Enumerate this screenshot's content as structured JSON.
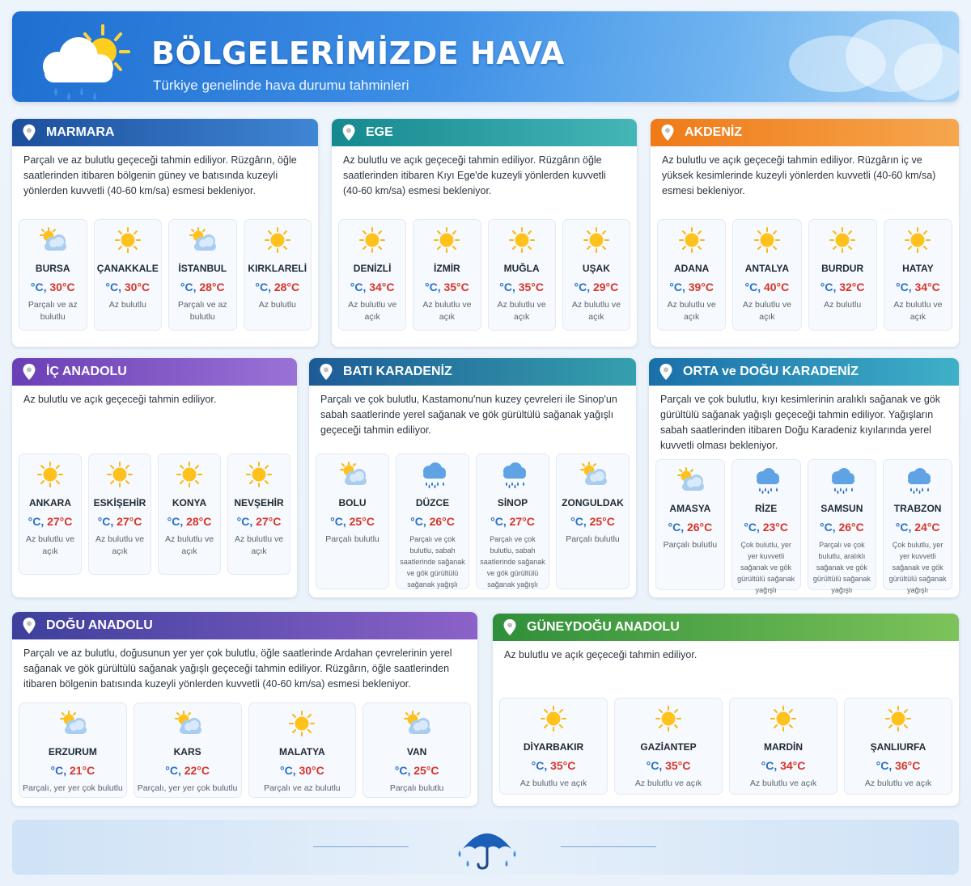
{
  "header": {
    "title": "BÖLGELERİMİZDE HAVA",
    "subtitle": "Türkiye genelinde hava durumu tahminleri"
  },
  "regions": {
    "marmara": {
      "name": "MARMARA",
      "desc": "Parçalı ve az bulutlu geçeceği tahmin ediliyor. Rüzgârın, öğle saatlerinden itibaren bölgenin güney ve batısında kuzeyli yönlerden kuvvetli (40-60 km/sa) esmesi bekleniyor.",
      "cities": [
        {
          "city": "BURSA",
          "unit": "°C,",
          "temp": "30°C",
          "cond": "Parçalı ve az bulutlu",
          "icon": "sun-cloud-icon"
        },
        {
          "city": "ÇANAKKALE",
          "unit": "°C,",
          "temp": "30°C",
          "cond": "Az bulutlu",
          "icon": "sun-icon"
        },
        {
          "city": "İSTANBUL",
          "unit": "°C,",
          "temp": "28°C",
          "cond": "Parçalı ve az bulutlu",
          "icon": "sun-cloud-icon"
        },
        {
          "city": "KIRKLARELİ",
          "unit": "°C,",
          "temp": "28°C",
          "cond": "Az bulutlu",
          "icon": "sun-icon"
        }
      ]
    },
    "ege": {
      "name": "EGE",
      "desc": "Az bulutlu ve açık geçeceği tahmin ediliyor. Rüzgârın öğle saatlerinden itibaren Kıyı Ege'de kuzeyli yönlerden kuvvetli (40-60 km/sa) esmesi bekleniyor.",
      "cities": [
        {
          "city": "DENİZLİ",
          "unit": "°C,",
          "temp": "34°C",
          "cond": "Az bulutlu ve açık",
          "icon": "sun-icon"
        },
        {
          "city": "İZMİR",
          "unit": "°C,",
          "temp": "35°C",
          "cond": "Az bulutlu ve açık",
          "icon": "sun-icon"
        },
        {
          "city": "MUĞLA",
          "unit": "°C,",
          "temp": "35°C",
          "cond": "Az bulutlu ve açık",
          "icon": "sun-icon"
        },
        {
          "city": "UŞAK",
          "unit": "°C,",
          "temp": "29°C",
          "cond": "Az bulutlu ve açık",
          "icon": "sun-icon"
        }
      ]
    },
    "akdeniz": {
      "name": "AKDENİZ",
      "desc": "Az bulutlu ve açık geçeceği tahmin ediliyor. Rüzgârın iç ve yüksek kesimlerinde kuzeyli yönlerden kuvvetli (40-60 km/sa) esmesi bekleniyor.",
      "cities": [
        {
          "city": "ADANA",
          "unit": "°C,",
          "temp": "39°C",
          "cond": "Az bulutlu ve açık",
          "icon": "sun-icon"
        },
        {
          "city": "ANTALYA",
          "unit": "°C,",
          "temp": "40°C",
          "cond": "Az bulutlu ve açık",
          "icon": "sun-icon"
        },
        {
          "city": "BURDUR",
          "unit": "°C,",
          "temp": "32°C",
          "cond": "Az bulutlu",
          "icon": "sun-icon"
        },
        {
          "city": "HATAY",
          "unit": "°C,",
          "temp": "34°C",
          "cond": "Az bulutlu ve açık",
          "icon": "sun-icon"
        }
      ]
    },
    "ic": {
      "name": "İÇ ANADOLU",
      "desc": "Az bulutlu ve açık geçeceği tahmin ediliyor.",
      "cities": [
        {
          "city": "ANKARA",
          "unit": "°C,",
          "temp": "27°C",
          "cond": "Az bulutlu ve açık",
          "icon": "sun-icon"
        },
        {
          "city": "ESKİŞEHİR",
          "unit": "°C,",
          "temp": "27°C",
          "cond": "Az bulutlu ve açık",
          "icon": "sun-icon"
        },
        {
          "city": "KONYA",
          "unit": "°C,",
          "temp": "28°C",
          "cond": "Az bulutlu ve açık",
          "icon": "sun-icon"
        },
        {
          "city": "NEVŞEHİR",
          "unit": "°C,",
          "temp": "27°C",
          "cond": "Az bulutlu ve açık",
          "icon": "sun-icon"
        }
      ]
    },
    "bati": {
      "name": "BATI KARADENİZ",
      "desc": "Parçalı ve çok bulutlu, Kastamonu'nun kuzey çevreleri ile Sinop'un sabah saatlerinde yerel sağanak ve gök gürültülü sağanak yağışlı geçeceği tahmin ediliyor.",
      "cities": [
        {
          "city": "BOLU",
          "unit": "°C,",
          "temp": "25°C",
          "cond": "Parçalı bulutlu",
          "icon": "sun-cloud-icon"
        },
        {
          "city": "DÜZCE",
          "unit": "°C,",
          "temp": "26°C",
          "cond": "Parçalı ve çok bulutlu, sabah saatlerinde sağanak ve gök gürültülü sağanak yağışlı",
          "icon": "rain-cloud-icon"
        },
        {
          "city": "SİNOP",
          "unit": "°C,",
          "temp": "27°C",
          "cond": "Parçalı ve çok bulutlu, sabah saatlerinde sağanak ve gök gürültülü sağanak yağışlı",
          "icon": "rain-cloud-icon"
        },
        {
          "city": "ZONGULDAK",
          "unit": "°C,",
          "temp": "25°C",
          "cond": "Parçalı bulutlu",
          "icon": "sun-cloud-icon"
        }
      ]
    },
    "orta": {
      "name": "ORTA ve DOĞU KARADENİZ",
      "desc": "Parçalı ve çok bulutlu, kıyı kesimlerinin aralıklı sağanak ve gök gürültülü sağanak yağışlı geçeceği tahmin ediliyor. Yağışların sabah saatlerinden itibaren Doğu Karadeniz kıyılarında yerel kuvvetli olması bekleniyor.",
      "cities": [
        {
          "city": "AMASYA",
          "unit": "°C,",
          "temp": "26°C",
          "cond": "Parçalı bulutlu",
          "icon": "sun-cloud-icon"
        },
        {
          "city": "RİZE",
          "unit": "°C,",
          "temp": "23°C",
          "cond": "Çok bulutlu, yer yer kuvvetli sağanak ve gök gürültülü sağanak yağışlı",
          "icon": "rain-cloud-icon"
        },
        {
          "city": "SAMSUN",
          "unit": "°C,",
          "temp": "26°C",
          "cond": "Parçalı ve çok bulutlu, aralıklı sağanak ve gök gürültülü sağanak yağışlı",
          "icon": "rain-cloud-icon"
        },
        {
          "city": "TRABZON",
          "unit": "°C,",
          "temp": "24°C",
          "cond": "Çok bulutlu, yer yer kuvvetli sağanak ve gök gürültülü sağanak yağışlı",
          "icon": "rain-cloud-icon"
        }
      ]
    },
    "dogu": {
      "name": "DOĞU ANADOLU",
      "desc": "Parçalı ve az bulutlu, doğusunun yer yer çok bulutlu, öğle saatlerinde Ardahan çevrelerinin yerel sağanak ve gök gürültülü sağanak yağışlı geçeceği tahmin ediliyor. Rüzgârın, öğle saatlerinden itibaren bölgenin batısında kuzeyli yönlerden kuvvetli (40-60 km/sa) esmesi bekleniyor.",
      "cities": [
        {
          "city": "ERZURUM",
          "unit": "°C,",
          "temp": "21°C",
          "cond": "Parçalı, yer yer çok bulutlu",
          "icon": "sun-cloud-icon"
        },
        {
          "city": "KARS",
          "unit": "°C,",
          "temp": "22°C",
          "cond": "Parçalı, yer yer çok bulutlu",
          "icon": "sun-cloud-icon"
        },
        {
          "city": "MALATYA",
          "unit": "°C,",
          "temp": "30°C",
          "cond": "Parçalı ve az bulutlu",
          "icon": "sun-icon"
        },
        {
          "city": "VAN",
          "unit": "°C,",
          "temp": "25°C",
          "cond": "Parçalı bulutlu",
          "icon": "sun-cloud-icon"
        }
      ]
    },
    "gd": {
      "name": "GÜNEYDOĞU ANADOLU",
      "desc": "Az bulutlu ve açık geçeceği tahmin ediliyor.",
      "cities": [
        {
          "city": "DİYARBAKIR",
          "unit": "°C,",
          "temp": "35°C",
          "cond": "Az bulutlu ve açık",
          "icon": "sun-icon"
        },
        {
          "city": "GAZİANTEP",
          "unit": "°C,",
          "temp": "35°C",
          "cond": "Az bulutlu ve açık",
          "icon": "sun-icon"
        },
        {
          "city": "MARDİN",
          "unit": "°C,",
          "temp": "34°C",
          "cond": "Az bulutlu ve açık",
          "icon": "sun-icon"
        },
        {
          "city": "ŞANLIURFA",
          "unit": "°C,",
          "temp": "36°C",
          "cond": "Az bulutlu ve açık",
          "icon": "sun-icon"
        }
      ]
    }
  },
  "colors": {
    "temp_unit": "#2a6fc7",
    "temp_value": "#d8342a",
    "marmara": "#1c4f9c",
    "ege": "#16898f",
    "akdeniz": "#ef7a17",
    "ic_anadolu": "#6a3fb5",
    "bati_karadeniz": "#1d5b96",
    "orta_dogu_karadeniz": "#1a6fa8",
    "dogu_anadolu": "#3d3f9c",
    "guneydogu_anadolu": "#2f8f3a"
  }
}
